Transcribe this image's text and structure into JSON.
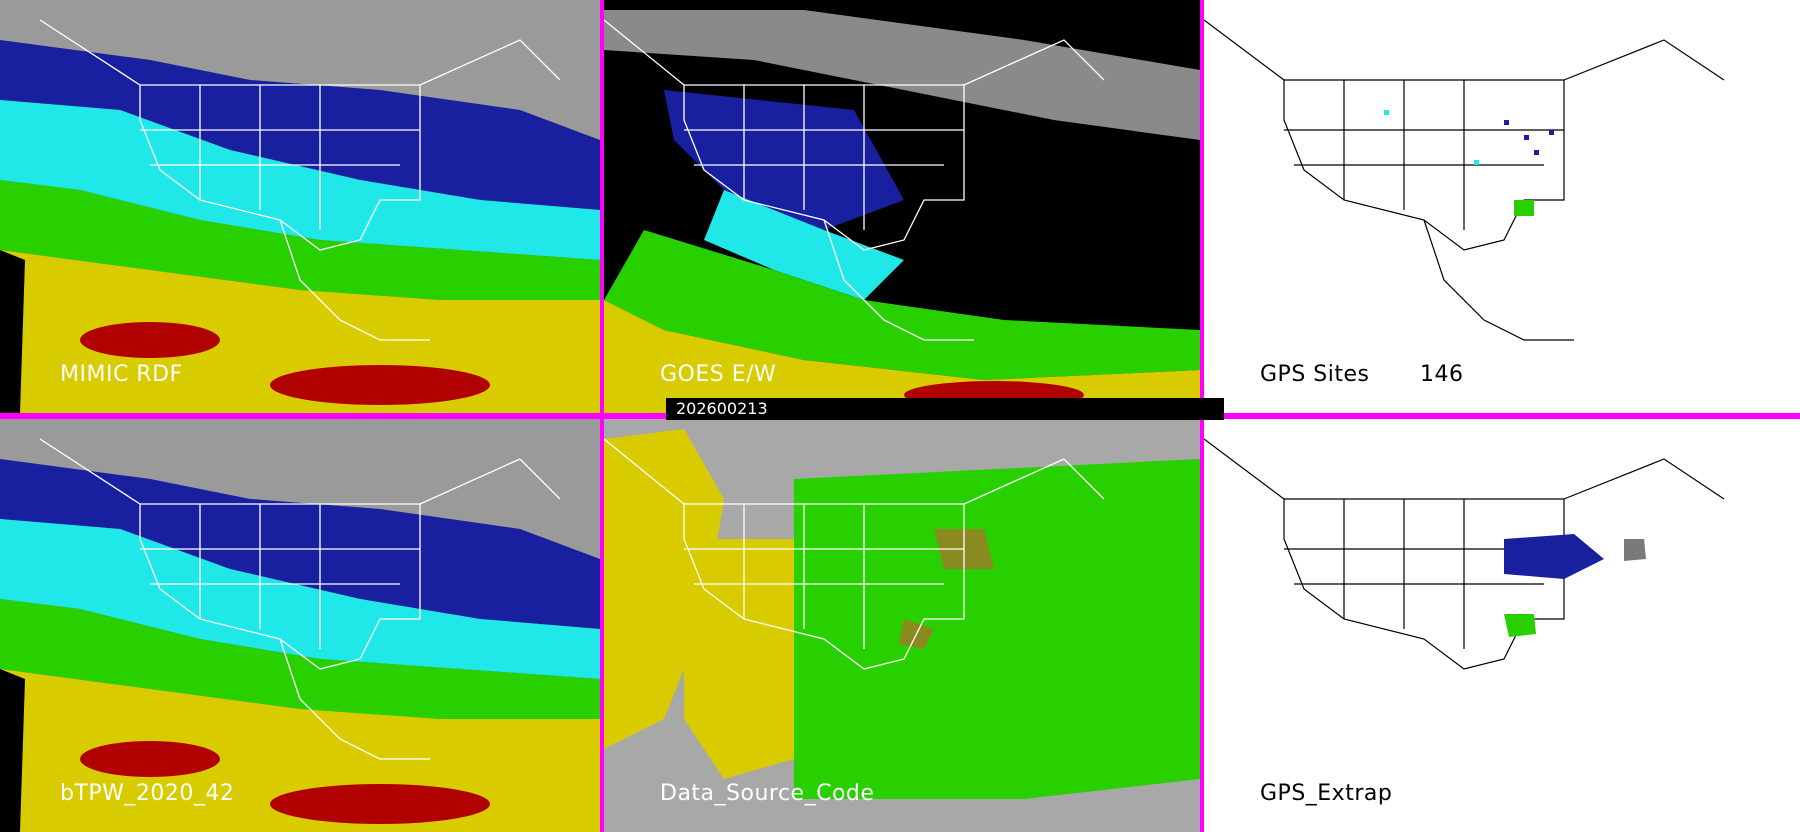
{
  "panels": [
    {
      "id": "mimic",
      "label": "MIMIC RDF",
      "theme": "tpw"
    },
    {
      "id": "goes",
      "label": "GOES E/W",
      "theme": "goes"
    },
    {
      "id": "gps_sites",
      "label": "GPS Sites",
      "count": "146",
      "theme": "gps"
    },
    {
      "id": "btpw",
      "label": "bTPW_2020_42",
      "theme": "tpw"
    },
    {
      "id": "source",
      "label": "Data_Source_Code",
      "theme": "source"
    },
    {
      "id": "gps_extrap",
      "label": "GPS_Extrap",
      "theme": "gps"
    }
  ],
  "timestamp": "202600213",
  "colors": {
    "divider": "#ff00ff",
    "red": "#b00000",
    "yellow": "#d8cc00",
    "green": "#28d000",
    "cyan": "#20e8e8",
    "blue": "#1820a0",
    "gray": "#a8a8a8",
    "olive": "#8a8a20"
  }
}
